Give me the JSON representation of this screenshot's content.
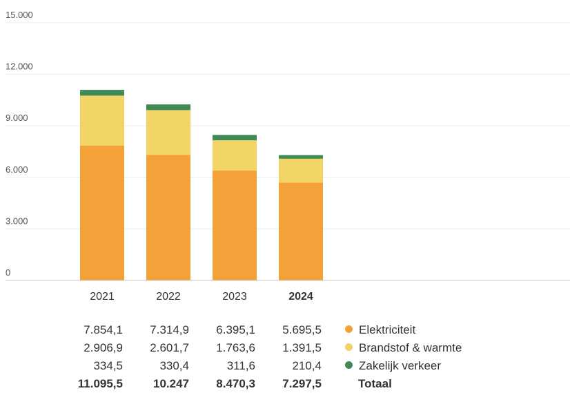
{
  "chart_data": {
    "type": "bar",
    "stacked": true,
    "categories": [
      "2021",
      "2022",
      "2023",
      "2024"
    ],
    "highlight_category": "2024",
    "series": [
      {
        "name": "Elektriciteit",
        "color": "#f3a23a",
        "values": [
          7854.1,
          7314.9,
          6395.1,
          5695.5
        ],
        "labels": [
          "7.854,1",
          "7.314,9",
          "6.395,1",
          "5.695,5"
        ]
      },
      {
        "name": "Brandstof & warmte",
        "color": "#f0d466",
        "values": [
          2906.9,
          2601.7,
          1763.6,
          1391.5
        ],
        "labels": [
          "2.906,9",
          "2.601,7",
          "1.763,6",
          "1.391,5"
        ]
      },
      {
        "name": "Zakelijk verkeer",
        "color": "#3f8a55",
        "values": [
          334.5,
          330.4,
          311.6,
          210.4
        ],
        "labels": [
          "334,5",
          "330,4",
          "311,6",
          "210,4"
        ]
      }
    ],
    "totals": {
      "name": "Totaal",
      "values": [
        11095.5,
        10247,
        8470.3,
        7297.5
      ],
      "labels": [
        "11.095,5",
        "10.247",
        "8.470,3",
        "7.297,5"
      ]
    },
    "ylim": [
      0,
      15000
    ],
    "yticks": [
      0,
      3000,
      6000,
      9000,
      12000,
      15000
    ],
    "ytick_labels": [
      "0",
      "3.000",
      "6.000",
      "9.000",
      "12.000",
      "15.000"
    ],
    "grid": true,
    "xlabel": "",
    "ylabel": "",
    "title": ""
  }
}
